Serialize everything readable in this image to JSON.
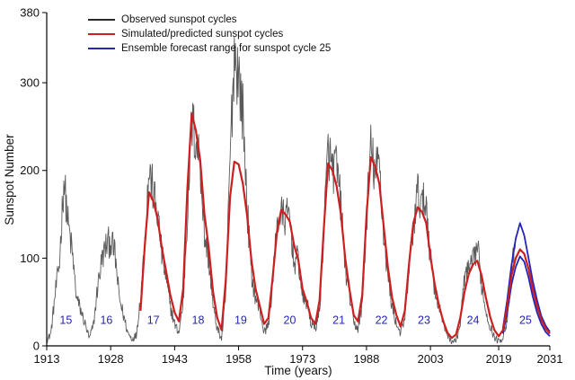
{
  "legend": [
    {
      "label": "Observed sunspot cycles",
      "color": "#2a2a2a"
    },
    {
      "label": "Simulated/predicted sunspot cycles",
      "color": "#cc2020"
    },
    {
      "label": "Ensemble forecast range for sunspot cycle 25",
      "color": "#2525b8"
    }
  ],
  "chart_data": {
    "type": "line",
    "title": "",
    "xlabel": "Time (years)",
    "ylabel": "Sunspot Number",
    "xlim": [
      1913,
      2031
    ],
    "ylim": [
      0,
      380
    ],
    "xticks": [
      1913,
      1928,
      1943,
      1958,
      1973,
      1988,
      2003,
      2019,
      2031
    ],
    "yticks": [
      0,
      100,
      200,
      300,
      380
    ],
    "grid": false,
    "legend_position": "top-left",
    "series": [
      {
        "name": "Observed sunspot cycles",
        "data_name": "observed-series-line",
        "color": "#5a5a5a",
        "width": 0.9,
        "style": "noisy",
        "x_start": 1913,
        "x_step": 1,
        "values": [
          5,
          15,
          60,
          95,
          190,
          140,
          105,
          55,
          40,
          25,
          8,
          25,
          70,
          100,
          115,
          120,
          105,
          55,
          35,
          15,
          8,
          12,
          55,
          120,
          200,
          175,
          150,
          105,
          75,
          45,
          25,
          15,
          50,
          150,
          255,
          235,
          210,
          125,
          100,
          45,
          20,
          8,
          55,
          215,
          335,
          310,
          265,
          160,
          80,
          55,
          40,
          15,
          25,
          70,
          140,
          150,
          145,
          150,
          95,
          100,
          55,
          50,
          25,
          20,
          40,
          135,
          225,
          200,
          205,
          160,
          90,
          60,
          25,
          20,
          45,
          145,
          225,
          195,
          210,
          130,
          80,
          45,
          25,
          15,
          30,
          90,
          135,
          175,
          160,
          165,
          100,
          65,
          45,
          25,
          13,
          5,
          6,
          25,
          80,
          85,
          95,
          115,
          70,
          40,
          22,
          10,
          5,
          10,
          30,
          80,
          125
        ]
      },
      {
        "name": "Ensemble forecast upper bound (cycle 25)",
        "data_name": "forecast-upper-line",
        "color": "#2525b8",
        "width": 1.8,
        "style": "smooth",
        "x_start": 2020,
        "x_step": 1,
        "values": [
          20,
          52,
          92,
          122,
          140,
          126,
          100,
          74,
          52,
          34,
          23,
          16
        ]
      },
      {
        "name": "Ensemble forecast lower bound (cycle 25)",
        "data_name": "forecast-lower-line",
        "color": "#2525b8",
        "width": 1.8,
        "style": "smooth",
        "x_start": 2020,
        "x_step": 1,
        "values": [
          14,
          38,
          70,
          90,
          102,
          96,
          78,
          56,
          38,
          25,
          16,
          11
        ]
      },
      {
        "name": "Simulated/predicted sunspot cycles",
        "data_name": "simulated-series-line",
        "color": "#cc2020",
        "width": 2.2,
        "style": "smooth",
        "x_start": 1935,
        "x_step": 1,
        "values": [
          40,
          115,
          175,
          165,
          145,
          112,
          85,
          58,
          38,
          28,
          65,
          180,
          265,
          245,
          212,
          150,
          112,
          62,
          32,
          18,
          75,
          170,
          210,
          207,
          185,
          148,
          98,
          65,
          45,
          25,
          32,
          78,
          130,
          155,
          150,
          142,
          115,
          98,
          65,
          50,
          32,
          25,
          52,
          135,
          208,
          200,
          182,
          150,
          100,
          65,
          35,
          28,
          58,
          148,
          215,
          205,
          185,
          138,
          90,
          55,
          35,
          22,
          40,
          95,
          140,
          158,
          153,
          140,
          102,
          70,
          46,
          28,
          15,
          9,
          13,
          32,
          62,
          82,
          93,
          97,
          80,
          55,
          33,
          18,
          11,
          18,
          45,
          80,
          100,
          110,
          105,
          88,
          65,
          45,
          30,
          20,
          14
        ]
      }
    ],
    "cycle_labels": [
      {
        "label": "15",
        "year": 1917.5
      },
      {
        "label": "16",
        "year": 1927.0
      },
      {
        "label": "17",
        "year": 1938.0
      },
      {
        "label": "18",
        "year": 1948.5
      },
      {
        "label": "19",
        "year": 1958.5
      },
      {
        "label": "20",
        "year": 1970.0
      },
      {
        "label": "21",
        "year": 1981.5
      },
      {
        "label": "22",
        "year": 1991.5
      },
      {
        "label": "23",
        "year": 2001.5
      },
      {
        "label": "24",
        "year": 2013.0
      },
      {
        "label": "25",
        "year": 2025.3
      }
    ],
    "cycle_label_color": "#2525b8",
    "cycle_label_y": 25
  }
}
